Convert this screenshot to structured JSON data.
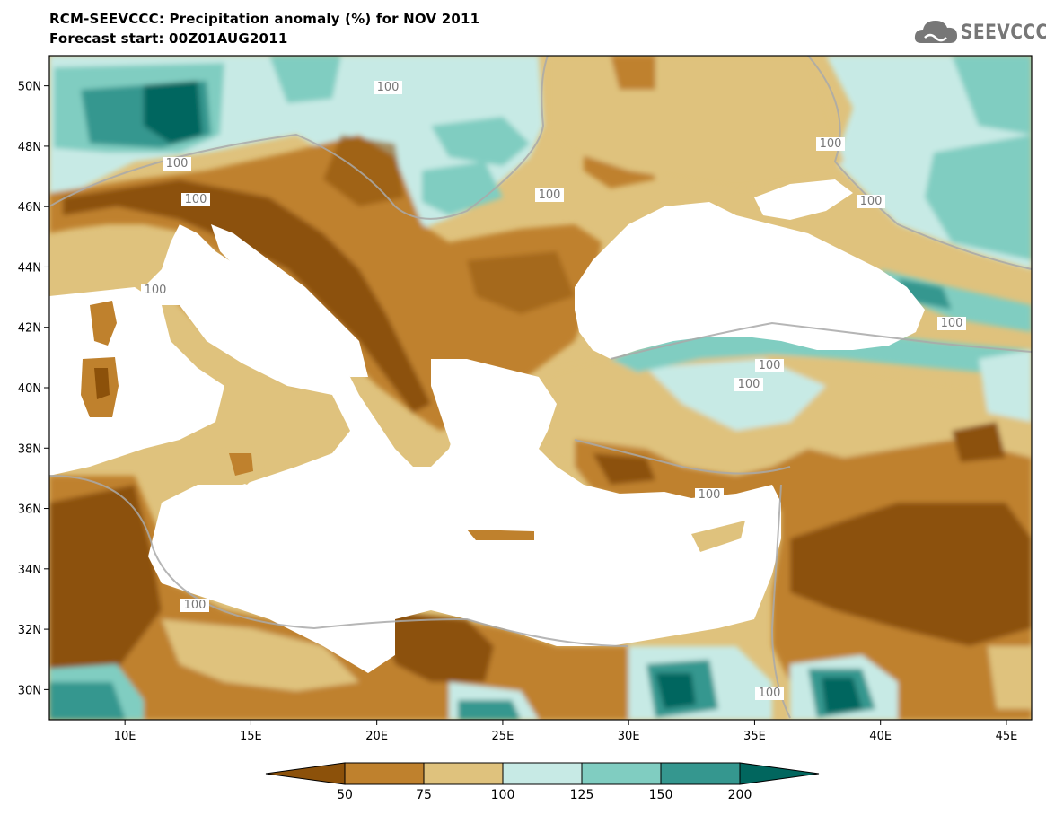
{
  "header": {
    "title": "RCM-SEEVCCC: Precipitation anomaly (%) for NOV 2011",
    "subtitle": "Forecast start: 00Z01AUG2011",
    "logo_text": "SEEVCCC"
  },
  "colors": {
    "below_50": "#8c510a",
    "50_75": "#bf812d",
    "75_100": "#dfc27d",
    "100_125": "#c7eae5",
    "125_150": "#80cdc1",
    "150_200": "#35978f",
    "above_200": "#01665e",
    "sea": "#ffffff",
    "contour_100": "#a9a9a9"
  },
  "chart_data": {
    "type": "heatmap",
    "title": "RCM-SEEVCCC: Precipitation anomaly (%) for NOV 2011",
    "subtitle": "Forecast start: 00Z01AUG2011",
    "xlabel": "",
    "ylabel": "",
    "x_ticks": [
      "10E",
      "15E",
      "20E",
      "25E",
      "30E",
      "35E",
      "40E",
      "45E"
    ],
    "y_ticks": [
      "50N",
      "48N",
      "46N",
      "44N",
      "42N",
      "40N",
      "38N",
      "36N",
      "34N",
      "32N",
      "30N"
    ],
    "xlim": [
      7,
      46
    ],
    "ylim": [
      29,
      51
    ],
    "colorbar": {
      "levels": [
        "50",
        "75",
        "100",
        "125",
        "150",
        "200"
      ],
      "extend": "both"
    },
    "contour_labels": [
      "100",
      "100",
      "100",
      "100",
      "100",
      "100",
      "100",
      "100",
      "100",
      "100",
      "100",
      "100",
      "100"
    ]
  }
}
